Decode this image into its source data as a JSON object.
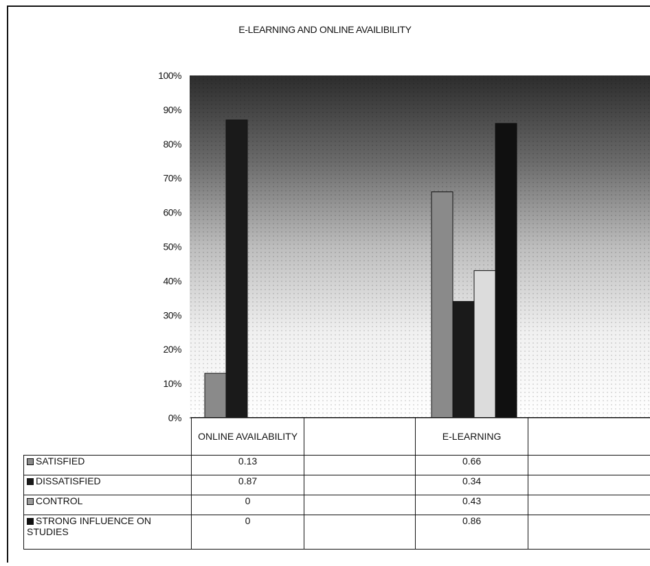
{
  "chart_data": {
    "type": "bar",
    "title": "E-LEARNING AND ONLINE AVAILIBILITY",
    "categories": [
      "ONLINE AVAILABILITY",
      "",
      "E-LEARNING",
      ""
    ],
    "ylim": [
      0,
      1
    ],
    "yticks": [
      "0%",
      "10%",
      "20%",
      "30%",
      "40%",
      "50%",
      "60%",
      "70%",
      "80%",
      "90%",
      "100%"
    ],
    "series": [
      {
        "name": "SATISFIED",
        "values": [
          0.13,
          null,
          0.66,
          null
        ],
        "color": "#8a8a8a"
      },
      {
        "name": "DISSATISFIED",
        "values": [
          0.87,
          null,
          0.34,
          null
        ],
        "color": "#1a1a1a"
      },
      {
        "name": "CONTROL",
        "values": [
          0,
          null,
          0.43,
          null
        ],
        "color": "#dcdcdc"
      },
      {
        "name": "STRONG INFLUENCE ON STUDIES",
        "values": [
          0,
          null,
          0.86,
          null
        ],
        "color": "#101010"
      }
    ],
    "table_values": [
      [
        "0.13",
        "",
        "0.66",
        ""
      ],
      [
        "0.87",
        "",
        "0.34",
        ""
      ],
      [
        "0",
        "",
        "0.43",
        ""
      ],
      [
        "0",
        "",
        "0.86",
        ""
      ]
    ],
    "legend": "table"
  }
}
